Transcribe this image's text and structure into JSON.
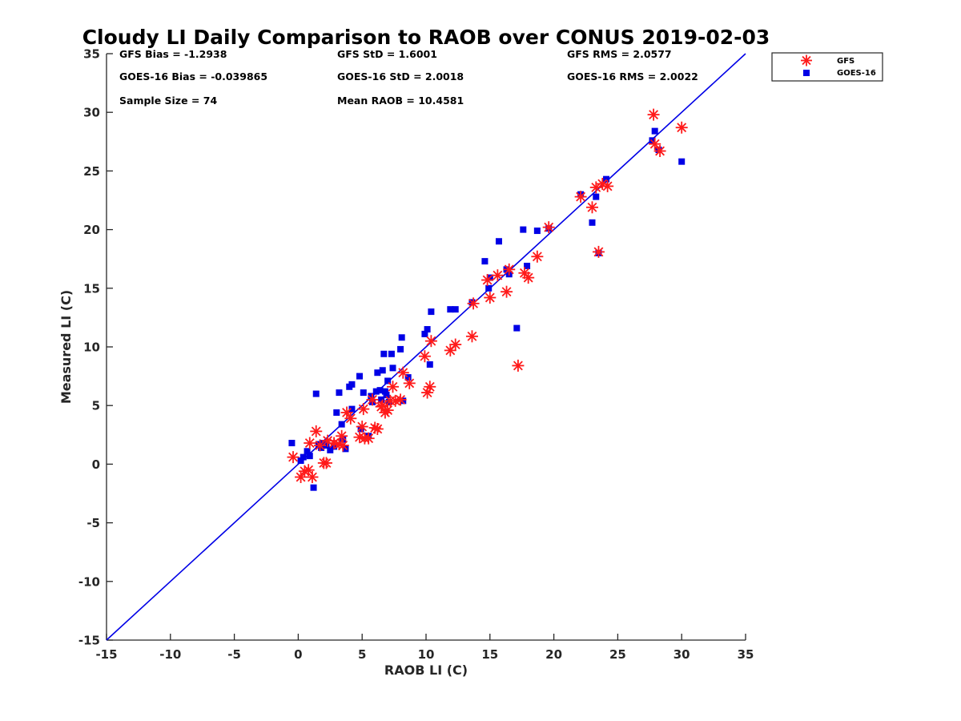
{
  "chart_data": {
    "type": "scatter",
    "title": "Cloudy LI Daily Comparison to RAOB over CONUS 2019-02-03",
    "xlabel": "RAOB LI (C)",
    "ylabel": "Measured LI (C)",
    "xlim": [
      -15,
      35
    ],
    "ylim": [
      -15,
      35
    ],
    "xticks": [
      -15,
      -10,
      -5,
      0,
      5,
      10,
      15,
      20,
      25,
      30,
      35
    ],
    "yticks": [
      -15,
      -10,
      -5,
      0,
      5,
      10,
      15,
      20,
      25,
      30,
      35
    ],
    "grid": false,
    "legend_position": "outside-top-right",
    "reference_line": {
      "from": [
        -15,
        -15
      ],
      "to": [
        35,
        35
      ],
      "color": "#0000e6"
    },
    "stats": [
      "GFS Bias = -1.2938",
      "GFS StD = 1.6001",
      "GFS RMS = 2.0577",
      "GOES-16 Bias = -0.039865",
      "GOES-16 StD = 2.0018",
      "GOES-16 RMS = 2.0022",
      "Sample Size = 74",
      "Mean RAOB = 10.4581"
    ],
    "series": [
      {
        "name": "GFS",
        "marker": "asterisk",
        "color": "#ff1a1a",
        "points": [
          [
            -0.4,
            0.6
          ],
          [
            0.2,
            -1.1
          ],
          [
            0.5,
            -0.6
          ],
          [
            0.8,
            -0.5
          ],
          [
            1.1,
            -1.1
          ],
          [
            0.9,
            1.8
          ],
          [
            1.4,
            2.8
          ],
          [
            1.7,
            1.6
          ],
          [
            2.0,
            0.1
          ],
          [
            2.2,
            0.1
          ],
          [
            2.3,
            2.0
          ],
          [
            2.8,
            1.8
          ],
          [
            3.2,
            1.7
          ],
          [
            3.4,
            2.4
          ],
          [
            3.5,
            1.6
          ],
          [
            3.8,
            4.4
          ],
          [
            4.1,
            3.9
          ],
          [
            4.8,
            2.3
          ],
          [
            5.0,
            3.2
          ],
          [
            5.1,
            4.7
          ],
          [
            5.2,
            2.2
          ],
          [
            5.5,
            2.2
          ],
          [
            5.8,
            5.5
          ],
          [
            6.0,
            3.1
          ],
          [
            6.2,
            3.0
          ],
          [
            6.5,
            4.9
          ],
          [
            6.6,
            5.0
          ],
          [
            6.8,
            4.4
          ],
          [
            7.0,
            4.6
          ],
          [
            7.2,
            5.4
          ],
          [
            7.4,
            6.6
          ],
          [
            7.6,
            5.4
          ],
          [
            8.0,
            5.5
          ],
          [
            8.2,
            7.8
          ],
          [
            8.7,
            6.9
          ],
          [
            9.9,
            9.2
          ],
          [
            10.1,
            6.1
          ],
          [
            10.3,
            6.6
          ],
          [
            10.4,
            10.5
          ],
          [
            11.9,
            9.7
          ],
          [
            12.3,
            10.2
          ],
          [
            13.6,
            10.9
          ],
          [
            13.7,
            13.7
          ],
          [
            14.8,
            15.7
          ],
          [
            15.0,
            14.2
          ],
          [
            15.6,
            16.1
          ],
          [
            16.3,
            14.7
          ],
          [
            16.5,
            16.6
          ],
          [
            17.2,
            8.4
          ],
          [
            17.7,
            16.3
          ],
          [
            18.0,
            15.9
          ],
          [
            18.7,
            17.7
          ],
          [
            19.6,
            20.2
          ],
          [
            22.1,
            22.8
          ],
          [
            23.0,
            21.9
          ],
          [
            23.3,
            23.6
          ],
          [
            23.5,
            18.1
          ],
          [
            23.8,
            23.9
          ],
          [
            24.2,
            23.7
          ],
          [
            27.8,
            29.8
          ],
          [
            27.9,
            27.3
          ],
          [
            28.3,
            26.7
          ],
          [
            30.0,
            28.7
          ]
        ]
      },
      {
        "name": "GOES-16",
        "marker": "square",
        "color": "#0000e6",
        "points": [
          [
            -0.5,
            1.8
          ],
          [
            0.2,
            0.3
          ],
          [
            0.4,
            0.6
          ],
          [
            0.7,
            1.1
          ],
          [
            0.9,
            0.7
          ],
          [
            1.2,
            -2.0
          ],
          [
            1.4,
            6.0
          ],
          [
            1.6,
            1.7
          ],
          [
            1.8,
            1.4
          ],
          [
            2.0,
            1.8
          ],
          [
            2.2,
            1.6
          ],
          [
            2.5,
            1.2
          ],
          [
            2.8,
            1.5
          ],
          [
            3.0,
            4.4
          ],
          [
            3.2,
            6.1
          ],
          [
            3.4,
            3.4
          ],
          [
            3.5,
            2.1
          ],
          [
            3.7,
            1.3
          ],
          [
            4.0,
            6.6
          ],
          [
            4.2,
            6.8
          ],
          [
            4.2,
            4.7
          ],
          [
            4.8,
            7.5
          ],
          [
            4.9,
            3.0
          ],
          [
            5.1,
            6.1
          ],
          [
            5.5,
            2.4
          ],
          [
            5.7,
            5.8
          ],
          [
            5.8,
            5.3
          ],
          [
            6.1,
            6.2
          ],
          [
            6.2,
            7.8
          ],
          [
            6.4,
            6.3
          ],
          [
            6.5,
            5.5
          ],
          [
            6.6,
            8.0
          ],
          [
            6.7,
            9.4
          ],
          [
            6.8,
            6.2
          ],
          [
            6.9,
            5.9
          ],
          [
            7.0,
            7.1
          ],
          [
            7.1,
            5.3
          ],
          [
            7.3,
            9.4
          ],
          [
            7.4,
            8.2
          ],
          [
            8.0,
            9.8
          ],
          [
            8.1,
            10.8
          ],
          [
            8.2,
            5.4
          ],
          [
            8.6,
            7.4
          ],
          [
            9.9,
            11.1
          ],
          [
            10.1,
            11.5
          ],
          [
            10.3,
            8.5
          ],
          [
            10.4,
            13.0
          ],
          [
            11.9,
            13.2
          ],
          [
            12.3,
            13.2
          ],
          [
            13.6,
            13.8
          ],
          [
            14.6,
            17.3
          ],
          [
            14.9,
            15.0
          ],
          [
            15.0,
            15.9
          ],
          [
            15.7,
            19.0
          ],
          [
            16.3,
            16.6
          ],
          [
            16.5,
            16.2
          ],
          [
            17.1,
            11.6
          ],
          [
            17.6,
            20.0
          ],
          [
            17.9,
            16.9
          ],
          [
            18.7,
            19.9
          ],
          [
            19.6,
            20.1
          ],
          [
            22.1,
            23.0
          ],
          [
            23.0,
            20.6
          ],
          [
            23.3,
            22.8
          ],
          [
            23.5,
            18.0
          ],
          [
            24.1,
            24.3
          ],
          [
            27.7,
            27.6
          ],
          [
            27.9,
            28.4
          ],
          [
            28.2,
            26.8
          ],
          [
            30.0,
            25.8
          ]
        ]
      }
    ]
  }
}
